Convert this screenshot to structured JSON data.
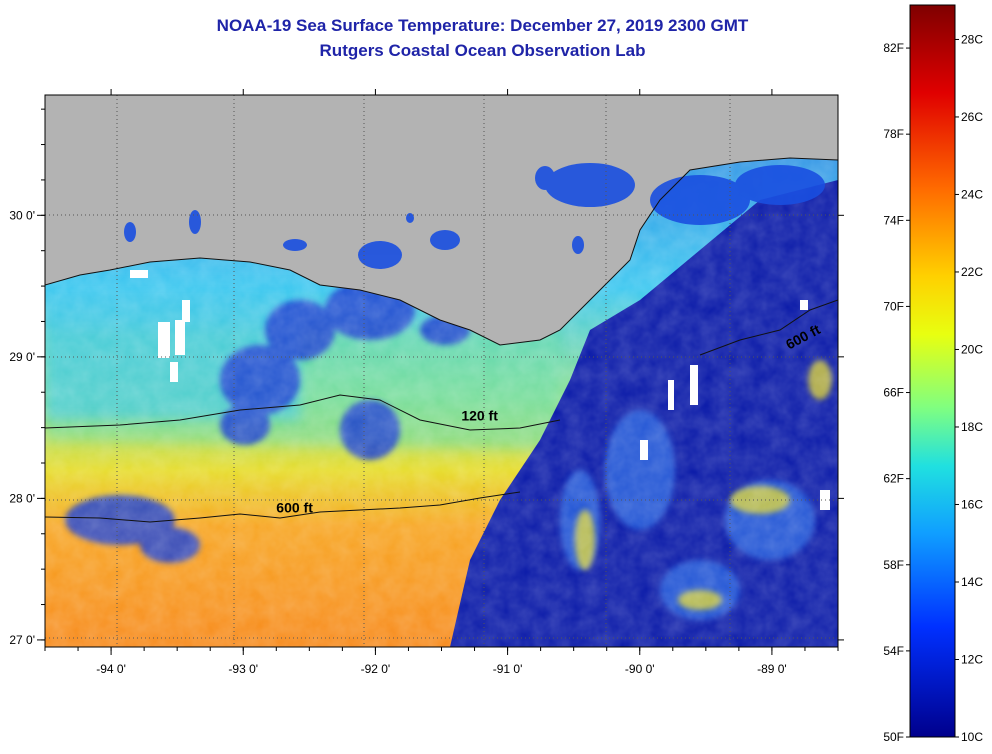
{
  "header": {
    "title": "NOAA-19 Sea Surface Temperature:  December 27, 2019 2300 GMT",
    "subtitle": "Rutgers Coastal Ocean Observation Lab"
  },
  "map": {
    "lon_range": [
      -94.5,
      -88.5
    ],
    "lat_range": [
      26.95,
      30.85
    ],
    "lon_ticks": [
      {
        "value": -94,
        "label": "-94 0'"
      },
      {
        "value": -93,
        "label": "-93 0'"
      },
      {
        "value": -92,
        "label": "-92 0'"
      },
      {
        "value": -91,
        "label": "-91 0'"
      },
      {
        "value": -90,
        "label": "-90 0'"
      },
      {
        "value": -89,
        "label": "-89 0'"
      }
    ],
    "lat_ticks": [
      {
        "value": 27,
        "label": "27 0'"
      },
      {
        "value": 28,
        "label": "28 0'"
      },
      {
        "value": 29,
        "label": "29 0'"
      },
      {
        "value": 30,
        "label": "30 0'"
      }
    ],
    "contour_labels": [
      {
        "label": "120 ft",
        "lon": -91.35,
        "lat": 28.55
      },
      {
        "label": "600 ft",
        "lon": -92.75,
        "lat": 27.9
      },
      {
        "label": "600 ft",
        "lon": -88.87,
        "lat": 29.05
      }
    ],
    "colors": {
      "land": "#b3b3b3",
      "grid": "#6a6a6a"
    }
  },
  "colorbar": {
    "min_f": 50,
    "max_f": 84,
    "f_labels": [
      "82F",
      "78F",
      "74F",
      "70F",
      "66F",
      "62F",
      "58F",
      "54F",
      "50F"
    ],
    "c_labels": [
      "28C",
      "26C",
      "24C",
      "22C",
      "20C",
      "18C",
      "16C",
      "14C",
      "12C",
      "10C"
    ],
    "f_values": [
      82,
      78,
      74,
      70,
      66,
      62,
      58,
      54,
      50
    ],
    "c_values": [
      28,
      26,
      24,
      22,
      20,
      18,
      16,
      14,
      12,
      10
    ]
  }
}
